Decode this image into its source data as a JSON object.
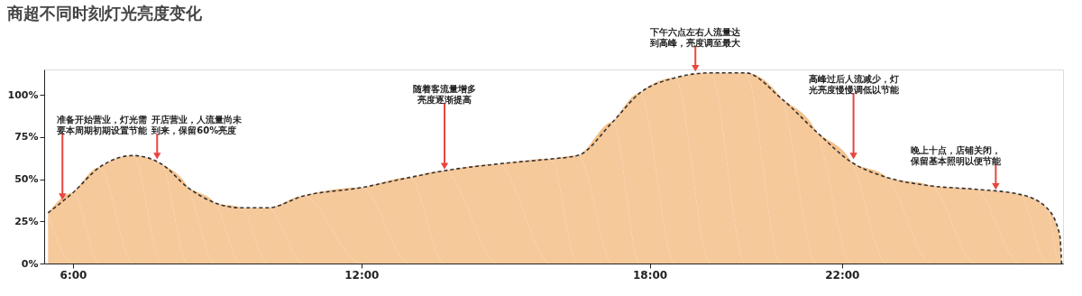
{
  "chart_data": {
    "type": "area",
    "title": "商超不同时刻灯光亮度变化",
    "x": [
      5.48,
      6,
      6.55,
      7.25,
      7.84,
      8.39,
      8.95,
      9.5,
      10.05,
      10.79,
      12,
      13,
      13.73,
      14.84,
      15.94,
      16.5,
      17.23,
      17.79,
      18.52,
      19.26,
      19.99,
      20.73,
      21.47,
      22.2,
      22.94,
      23.86,
      24.78,
      25.7,
      26.26,
      26.53,
      26.57
    ],
    "series": [
      {
        "color": "#f5c08a",
        "values": [
          30,
          42,
          57,
          64,
          59,
          45,
          36,
          33,
          33,
          40,
          45,
          51,
          55,
          59,
          62,
          64,
          84,
          101,
          110,
          113,
          113,
          98,
          78,
          60,
          51,
          46,
          44,
          41,
          33,
          17,
          0
        ]
      }
    ],
    "xlim": [
      5.4,
      26.6
    ],
    "xticks": [
      {
        "value": 6,
        "label": "6:00"
      },
      {
        "value": 12,
        "label": "12:00"
      },
      {
        "value": 18,
        "label": "18:00"
      },
      {
        "value": 22,
        "label": "22:00"
      }
    ],
    "ylim": [
      0,
      115
    ],
    "yticks": [
      {
        "value": 0,
        "label": "0%"
      },
      {
        "value": 25,
        "label": "25%"
      },
      {
        "value": 50,
        "label": "50%"
      },
      {
        "value": 75,
        "label": "75%"
      },
      {
        "value": 100,
        "label": "100%"
      }
    ],
    "line_style": "dashed",
    "grid": false,
    "annotations": [
      {
        "text": "准备开始营业，灯光需要本周期初期设置节能",
        "x": 5.78,
        "y": 37
      },
      {
        "text": "开店营业，人流量尚未到来，保留60%亮度",
        "x": 7.75,
        "y": 61
      },
      {
        "text": "随着客流量增多亮度逐渐提高",
        "x": 13.73,
        "y": 55
      },
      {
        "text": "下午六点左右人流量达到高峰，亮度调至最大",
        "x": 18.95,
        "y": 113
      },
      {
        "text": "高峰过后人流减少，灯光亮度慢慢调低以节能",
        "x": 22.24,
        "y": 61
      },
      {
        "text": "晚上十点，店铺关闭，保留基本照明以便节能",
        "x": 25.2,
        "y": 43
      }
    ]
  }
}
